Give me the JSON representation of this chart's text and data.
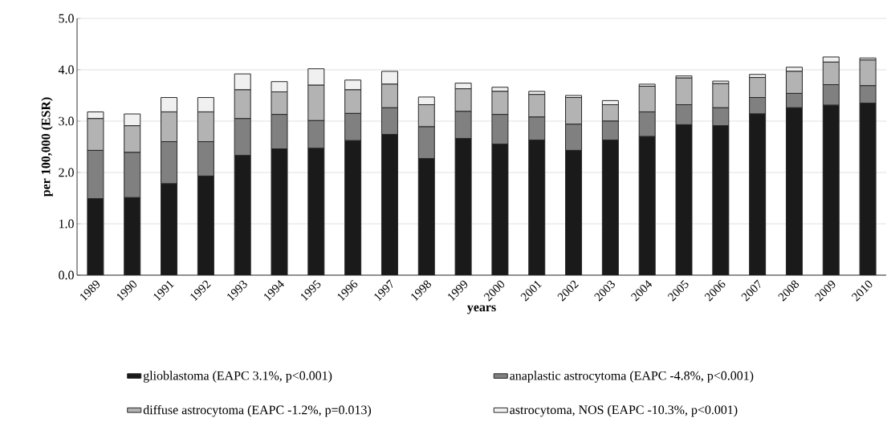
{
  "chart_data": {
    "type": "bar",
    "stacked": true,
    "xlabel": "years",
    "ylabel": "per 100,000 (ESR)",
    "categories": [
      "1989",
      "1990",
      "1991",
      "1992",
      "1993",
      "1994",
      "1995",
      "1996",
      "1997",
      "1998",
      "1999",
      "2000",
      "2001",
      "2002",
      "2003",
      "2004",
      "2005",
      "2006",
      "2007",
      "2008",
      "2009",
      "2010"
    ],
    "series": [
      {
        "name": "glioblastoma (EAPC 3.1%, p<0.001)",
        "color": "#1a1a1a",
        "values": [
          1.49,
          1.51,
          1.78,
          1.93,
          2.33,
          2.46,
          2.47,
          2.62,
          2.74,
          2.27,
          2.66,
          2.55,
          2.63,
          2.43,
          2.63,
          2.7,
          2.93,
          2.91,
          3.14,
          3.26,
          3.31,
          3.35
        ]
      },
      {
        "name": "anaplastic astrocytoma (EAPC -4.8%, p<0.001)",
        "color": "#808080",
        "values": [
          0.94,
          0.88,
          0.82,
          0.67,
          0.72,
          0.67,
          0.54,
          0.53,
          0.52,
          0.62,
          0.53,
          0.58,
          0.45,
          0.51,
          0.37,
          0.48,
          0.39,
          0.35,
          0.32,
          0.28,
          0.4,
          0.34
        ]
      },
      {
        "name": "diffuse astrocytoma (EAPC -1.2%, p=0.013)",
        "color": "#b3b3b3",
        "values": [
          0.62,
          0.52,
          0.58,
          0.58,
          0.56,
          0.44,
          0.69,
          0.46,
          0.46,
          0.43,
          0.44,
          0.45,
          0.44,
          0.52,
          0.32,
          0.5,
          0.52,
          0.47,
          0.39,
          0.43,
          0.44,
          0.5
        ]
      },
      {
        "name": "astrocytoma, NOS (EAPC -10.3%, p<0.001)",
        "color": "#f0f0f0",
        "values": [
          0.13,
          0.23,
          0.28,
          0.28,
          0.31,
          0.2,
          0.32,
          0.19,
          0.25,
          0.15,
          0.11,
          0.08,
          0.06,
          0.04,
          0.08,
          0.04,
          0.04,
          0.05,
          0.06,
          0.08,
          0.1,
          0.04
        ]
      }
    ],
    "ylim": [
      0,
      5
    ],
    "yticks": [
      {
        "value": 0,
        "label": "0.0"
      },
      {
        "value": 1,
        "label": "1.0"
      },
      {
        "value": 2,
        "label": "2.0"
      },
      {
        "value": 3,
        "label": "3.0"
      },
      {
        "value": 4,
        "label": "4.0"
      },
      {
        "value": 5,
        "label": "5.0"
      }
    ],
    "grid": "y",
    "legend": "bottom"
  }
}
